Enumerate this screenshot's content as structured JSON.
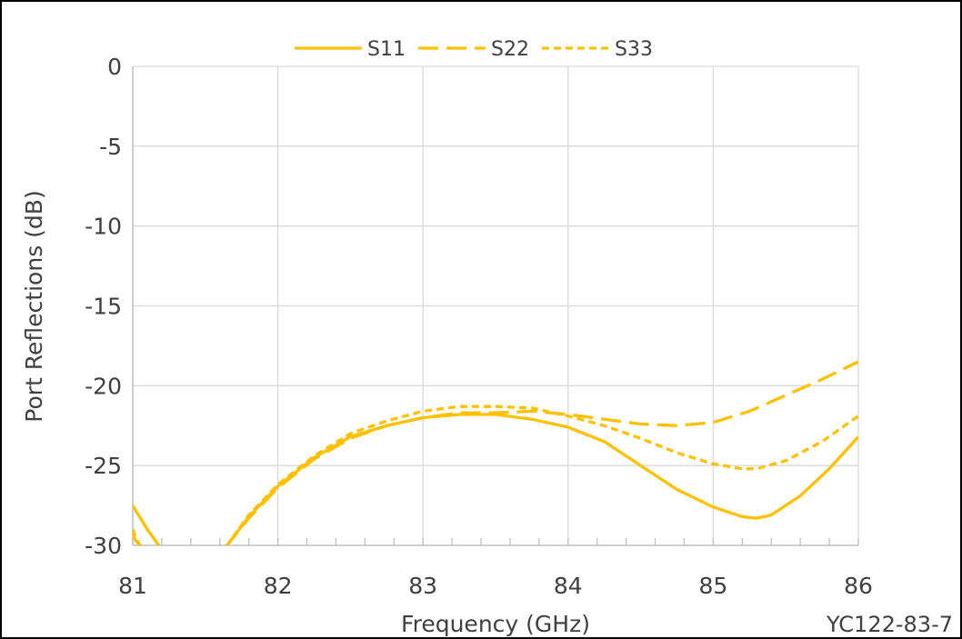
{
  "chart_data": {
    "type": "line",
    "title": "",
    "xlabel": "Frequency (GHz)",
    "ylabel": "Port Reflections (dB)",
    "xlim": [
      81,
      86
    ],
    "ylim": [
      -30,
      0
    ],
    "x_ticks": [
      "81",
      "82",
      "83",
      "84",
      "85",
      "86"
    ],
    "y_ticks": [
      "0",
      "-5",
      "-10",
      "-15",
      "-20",
      "-25",
      "-30"
    ],
    "grid": true,
    "legend_position": "top-center",
    "line_color": "#FFC000",
    "note": "YC122-83-7",
    "series": [
      {
        "name": "S11",
        "style": "solid",
        "x": [
          81.0,
          81.1,
          81.18,
          81.2,
          81.6,
          81.65,
          81.8,
          82.0,
          82.25,
          82.5,
          82.75,
          83.0,
          83.25,
          83.5,
          83.75,
          84.0,
          84.25,
          84.5,
          84.75,
          85.0,
          85.2,
          85.3,
          85.4,
          85.6,
          85.8,
          86.0
        ],
        "y": [
          -27.5,
          -29.0,
          -30.0,
          -31.0,
          -31.0,
          -30.0,
          -28.2,
          -26.3,
          -24.5,
          -23.2,
          -22.5,
          -22.0,
          -21.8,
          -21.8,
          -22.1,
          -22.6,
          -23.5,
          -25.0,
          -26.5,
          -27.6,
          -28.2,
          -28.3,
          -28.1,
          -26.9,
          -25.2,
          -23.2
        ]
      },
      {
        "name": "S22",
        "style": "dashed",
        "x": [
          81.0,
          81.02,
          81.05,
          81.2,
          81.6,
          81.65,
          81.8,
          82.0,
          82.25,
          82.5,
          82.75,
          83.0,
          83.25,
          83.5,
          83.75,
          84.0,
          84.25,
          84.5,
          84.75,
          85.0,
          85.25,
          85.5,
          85.75,
          86.0
        ],
        "y": [
          -29.3,
          -29.7,
          -30.0,
          -31.0,
          -31.0,
          -30.0,
          -28.3,
          -26.4,
          -24.6,
          -23.3,
          -22.5,
          -22.0,
          -21.7,
          -21.7,
          -21.6,
          -21.8,
          -22.1,
          -22.4,
          -22.5,
          -22.3,
          -21.6,
          -20.6,
          -19.6,
          -18.5
        ]
      },
      {
        "name": "S33",
        "style": "dotted",
        "x": [
          81.0,
          81.03,
          81.05,
          81.2,
          81.6,
          81.65,
          81.8,
          82.0,
          82.25,
          82.5,
          82.75,
          83.0,
          83.25,
          83.5,
          83.75,
          84.0,
          84.25,
          84.5,
          84.75,
          85.0,
          85.2,
          85.3,
          85.5,
          85.75,
          86.0
        ],
        "y": [
          -29.0,
          -29.7,
          -30.0,
          -31.0,
          -31.0,
          -30.0,
          -28.1,
          -26.2,
          -24.4,
          -23.0,
          -22.2,
          -21.6,
          -21.3,
          -21.3,
          -21.4,
          -21.9,
          -22.5,
          -23.3,
          -24.2,
          -24.9,
          -25.2,
          -25.2,
          -24.7,
          -23.5,
          -21.9
        ]
      }
    ]
  }
}
